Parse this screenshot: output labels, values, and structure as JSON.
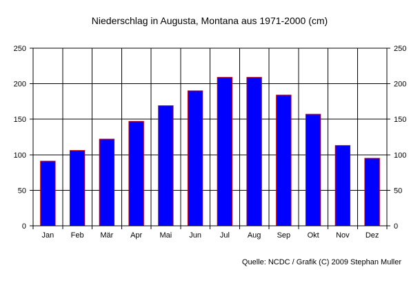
{
  "chart_data": {
    "type": "bar",
    "title": "Niederschlag in Augusta, Montana aus 1971-2000 (cm)",
    "categories": [
      "Jan",
      "Feb",
      "Mär",
      "Apr",
      "Mai",
      "Jun",
      "Jul",
      "Aug",
      "Sep",
      "Okt",
      "Nov",
      "Dez"
    ],
    "values": [
      91,
      106,
      122,
      147,
      169,
      190,
      209,
      209,
      184,
      157,
      113,
      95
    ],
    "ylim": [
      0,
      250
    ],
    "yticks": [
      0,
      50,
      100,
      150,
      200,
      250
    ],
    "y_axis_both_sides": true,
    "grid": true,
    "legend": "none",
    "source": "Quelle: NCDC / Grafik (C) 2009 Stephan Muller",
    "colors": {
      "bar_fill": "#0000ff",
      "bar_edge": "#c00000",
      "grid": "#000000",
      "background": "#ffffff"
    }
  }
}
